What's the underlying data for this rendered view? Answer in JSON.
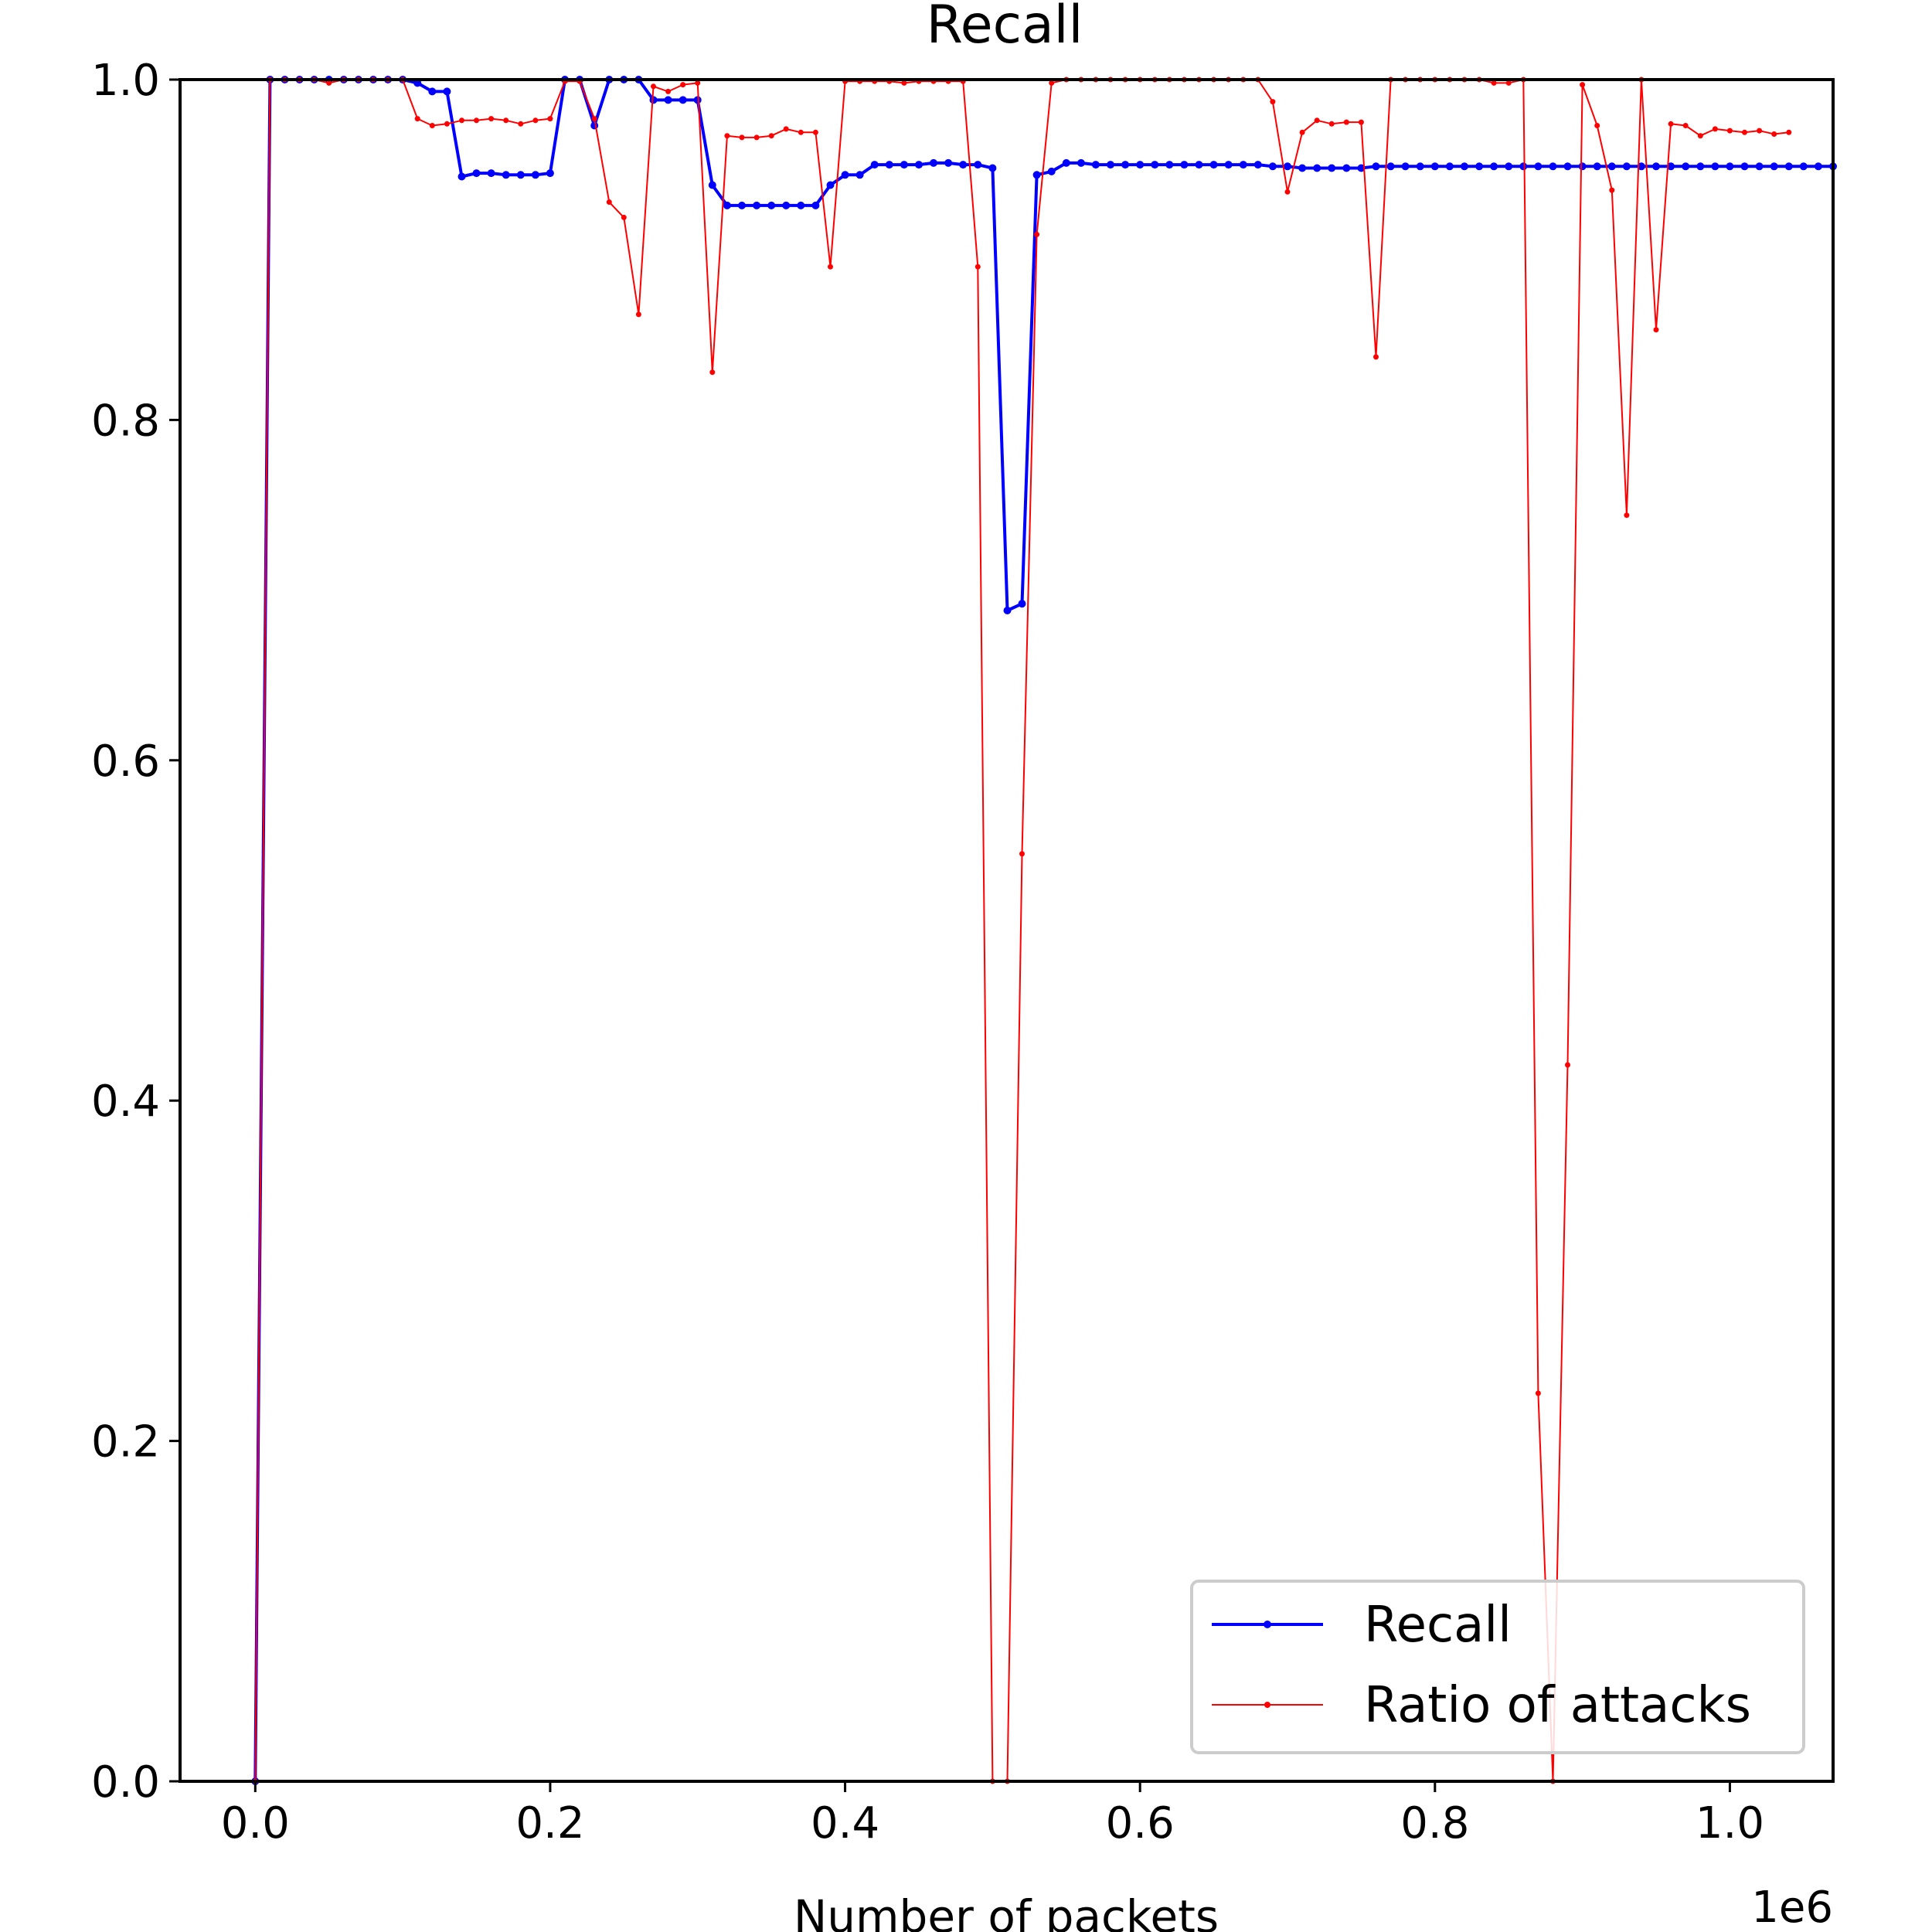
{
  "chart_data": {
    "type": "line",
    "title": "Recall",
    "xlabel": "Number of packets",
    "ylabel": "",
    "x_offset_label": "1e6",
    "xlim": [
      -0.051,
      1.07
    ],
    "ylim": [
      0.0,
      1.0
    ],
    "x_ticks": [
      0.0,
      0.2,
      0.4,
      0.6,
      0.8,
      1.0
    ],
    "x_tick_labels": [
      "0.0",
      "0.2",
      "0.4",
      "0.6",
      "0.8",
      "1.0"
    ],
    "y_ticks": [
      0.0,
      0.2,
      0.4,
      0.6,
      0.8,
      1.0
    ],
    "y_tick_labels": [
      "0.0",
      "0.2",
      "0.4",
      "0.6",
      "0.8",
      "1.0"
    ],
    "grid": false,
    "legend_position": "lower right",
    "x_step": 0.01,
    "series": [
      {
        "name": "Recall",
        "color": "#0000ff",
        "values": [
          0.0,
          1.0,
          1.0,
          1.0,
          1.0,
          1.0,
          1.0,
          1.0,
          1.0,
          1.0,
          1.0,
          0.998,
          0.993,
          0.993,
          0.943,
          0.945,
          0.945,
          0.944,
          0.944,
          0.944,
          0.945,
          1.0,
          1.0,
          0.973,
          1.0,
          1.0,
          1.0,
          0.988,
          0.988,
          0.988,
          0.988,
          0.938,
          0.926,
          0.926,
          0.926,
          0.926,
          0.926,
          0.926,
          0.926,
          0.938,
          0.944,
          0.944,
          0.95,
          0.95,
          0.95,
          0.95,
          0.951,
          0.951,
          0.95,
          0.95,
          0.948,
          0.688,
          0.692,
          0.944,
          0.946,
          0.951,
          0.951,
          0.95,
          0.95,
          0.95,
          0.95,
          0.95,
          0.95,
          0.95,
          0.95,
          0.95,
          0.95,
          0.95,
          0.95,
          0.949,
          0.949,
          0.948,
          0.948,
          0.948,
          0.948,
          0.948,
          0.949,
          0.949,
          0.949,
          0.949,
          0.949,
          0.949,
          0.949,
          0.949,
          0.949,
          0.949,
          0.949,
          0.949,
          0.949,
          0.949,
          0.949,
          0.949,
          0.949,
          0.949,
          0.949,
          0.949,
          0.949,
          0.949,
          0.949,
          0.949,
          0.949,
          0.949,
          0.949,
          0.949,
          0.949,
          0.949,
          0.949,
          0.949
        ]
      },
      {
        "name": "Ratio of attacks",
        "color": "#ff0000",
        "values": [
          0.0,
          1.0,
          1.0,
          1.0,
          1.0,
          0.998,
          1.0,
          1.0,
          1.0,
          1.0,
          1.0,
          0.977,
          0.973,
          0.974,
          0.976,
          0.976,
          0.977,
          0.976,
          0.974,
          0.976,
          0.977,
          0.999,
          0.999,
          0.977,
          0.928,
          0.919,
          0.862,
          0.996,
          0.993,
          0.997,
          0.998,
          0.828,
          0.967,
          0.966,
          0.966,
          0.967,
          0.971,
          0.969,
          0.969,
          0.89,
          0.999,
          0.999,
          0.999,
          0.999,
          0.998,
          0.999,
          0.999,
          0.999,
          0.999,
          0.89,
          0.0,
          0.0,
          0.545,
          0.909,
          0.998,
          1.0,
          1.0,
          1.0,
          1.0,
          1.0,
          1.0,
          1.0,
          1.0,
          1.0,
          1.0,
          1.0,
          1.0,
          1.0,
          1.0,
          0.987,
          0.934,
          0.969,
          0.976,
          0.974,
          0.975,
          0.975,
          0.837,
          1.0,
          1.0,
          1.0,
          1.0,
          1.0,
          1.0,
          1.0,
          0.998,
          0.998,
          1.0,
          0.228,
          0.0,
          0.421,
          0.997,
          0.973,
          0.935,
          0.744,
          1.0,
          0.853,
          0.974,
          0.973,
          0.967,
          0.971,
          0.97,
          0.969,
          0.97,
          0.968,
          0.969
        ]
      }
    ]
  }
}
